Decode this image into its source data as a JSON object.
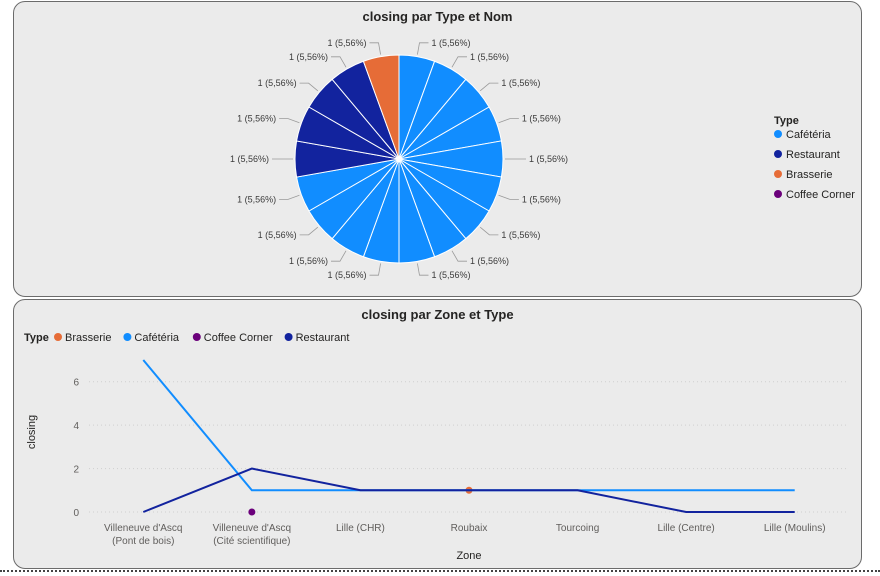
{
  "chart_data": [
    {
      "type": "pie",
      "title": "closing par Type et Nom",
      "legend": {
        "title": "Type",
        "position": "right",
        "entries": [
          {
            "name": "Cafétéria",
            "color": "#118DFF"
          },
          {
            "name": "Restaurant",
            "color": "#12239E"
          },
          {
            "name": "Brasserie",
            "color": "#E66C37"
          },
          {
            "name": "Coffee Corner",
            "color": "#6B007B"
          }
        ]
      },
      "slices": [
        {
          "type": "Cafétéria",
          "value": 1,
          "label": "1 (5,56%)"
        },
        {
          "type": "Cafétéria",
          "value": 1,
          "label": "1 (5,56%)"
        },
        {
          "type": "Cafétéria",
          "value": 1,
          "label": "1 (5,56%)"
        },
        {
          "type": "Cafétéria",
          "value": 1,
          "label": "1 (5,56%)"
        },
        {
          "type": "Cafétéria",
          "value": 1,
          "label": "1 (5,56%)"
        },
        {
          "type": "Cafétéria",
          "value": 1,
          "label": "1 (5,56%)"
        },
        {
          "type": "Cafétéria",
          "value": 1,
          "label": "1 (5,56%)"
        },
        {
          "type": "Cafétéria",
          "value": 1,
          "label": "1 (5,56%)"
        },
        {
          "type": "Cafétéria",
          "value": 1,
          "label": "1 (5,56%)"
        },
        {
          "type": "Cafétéria",
          "value": 1,
          "label": "1 (5,56%)"
        },
        {
          "type": "Cafétéria",
          "value": 1,
          "label": "1 (5,56%)"
        },
        {
          "type": "Cafétéria",
          "value": 1,
          "label": "1 (5,56%)"
        },
        {
          "type": "Cafétéria",
          "value": 1,
          "label": "1 (5,56%)"
        },
        {
          "type": "Restaurant",
          "value": 1,
          "label": "1 (5,56%)"
        },
        {
          "type": "Restaurant",
          "value": 1,
          "label": "1 (5,56%)"
        },
        {
          "type": "Restaurant",
          "value": 1,
          "label": "1 (5,56%)"
        },
        {
          "type": "Restaurant",
          "value": 1,
          "label": "1 (5,56%)"
        },
        {
          "type": "Brasserie",
          "value": 1,
          "label": "1 (5,56%)"
        }
      ]
    },
    {
      "type": "line",
      "title": "closing par Zone et Type",
      "xlabel": "Zone",
      "ylabel": "closing",
      "ylim": [
        0,
        7
      ],
      "yticks": [
        0,
        2,
        4,
        6
      ],
      "grid": true,
      "legend": {
        "title": "Type",
        "position": "top-left"
      },
      "categories": [
        [
          "Villeneuve d'Ascq",
          "(Pont de bois)"
        ],
        [
          "Villeneuve d'Ascq",
          "(Cité scientifique)"
        ],
        [
          "Lille (CHR)"
        ],
        [
          "Roubaix"
        ],
        [
          "Tourcoing"
        ],
        [
          "Lille (Centre)"
        ],
        [
          "Lille (Moulins)"
        ]
      ],
      "series": [
        {
          "name": "Brasserie",
          "color": "#E66C37",
          "values": [
            null,
            null,
            null,
            1,
            null,
            null,
            null
          ]
        },
        {
          "name": "Cafétéria",
          "color": "#118DFF",
          "values": [
            7,
            1,
            1,
            1,
            1,
            1,
            1
          ]
        },
        {
          "name": "Coffee Corner",
          "color": "#6B007B",
          "values": [
            null,
            0,
            null,
            null,
            null,
            null,
            null
          ]
        },
        {
          "name": "Restaurant",
          "color": "#12239E",
          "values": [
            0,
            2,
            1,
            1,
            1,
            0,
            0
          ]
        }
      ]
    }
  ]
}
